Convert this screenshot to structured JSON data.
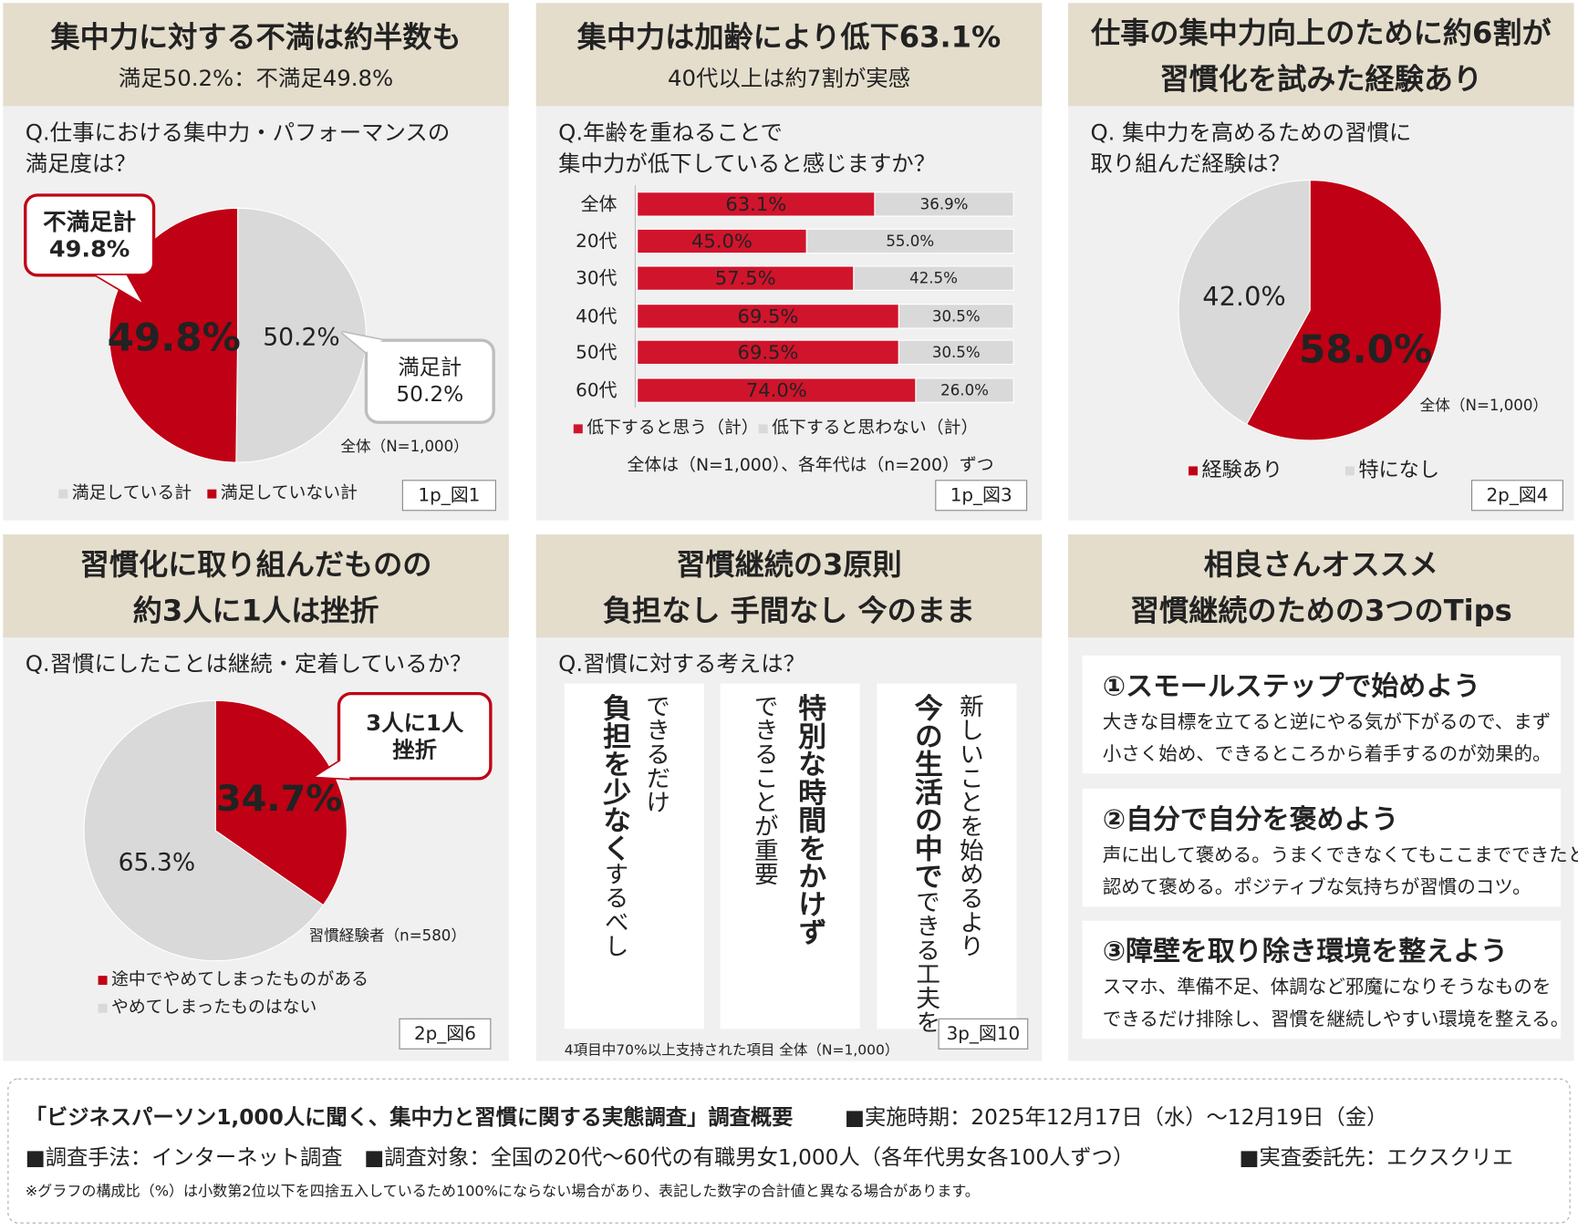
{
  "chart_data": [
    {
      "type": "pie",
      "title": [
        "集中力に対する不満は約半数も"
      ],
      "subtitle": "満足50.2%：不満足49.8%",
      "question": [
        "Q.仕事における集中力・パフォーマンスの",
        "満足度は？"
      ],
      "categories": [
        "満足している計",
        "満足していない計"
      ],
      "values": [
        50.2,
        49.8
      ],
      "value_labels": [
        "50.2%",
        "49.8%"
      ],
      "colors": [
        "#d9d9d9",
        "#c00014"
      ],
      "callouts": [
        {
          "lines": [
            "不満足計",
            "49.8%"
          ],
          "color": "#c00014"
        },
        {
          "lines": [
            "満足計",
            "50.2%"
          ],
          "color": "#bdbdbd"
        }
      ],
      "note": "全体（N=1,000）",
      "figure": "1p_図1"
    },
    {
      "type": "bar",
      "orientation": "horizontal",
      "stacked": true,
      "title": [
        "集中力は加齢により低下63.1%"
      ],
      "subtitle": "40代以上は約7割が実感",
      "question": [
        "Q.年齢を重ねることで",
        "集中力が低下していると感じますか？"
      ],
      "categories": [
        "全体",
        "20代",
        "30代",
        "40代",
        "50代",
        "60代"
      ],
      "series": [
        {
          "name": "低下すると思う（計）",
          "color": "#d0142c",
          "values": [
            63.1,
            45.0,
            57.5,
            69.5,
            69.5,
            74.0
          ],
          "value_labels": [
            "63.1%",
            "45.0%",
            "57.5%",
            "69.5%",
            "69.5%",
            "74.0%"
          ]
        },
        {
          "name": "低下すると思わない（計）",
          "color": "#d9d9d9",
          "values": [
            36.9,
            55.0,
            42.5,
            30.5,
            30.5,
            26.0
          ],
          "value_labels": [
            "36.9%",
            "55.0%",
            "42.5%",
            "30.5%",
            "30.5%",
            "26.0%"
          ]
        }
      ],
      "xlim": [
        0,
        100
      ],
      "note": "全体は（N=1,000）、各年代は（n=200）ずつ",
      "figure": "1p_図3"
    },
    {
      "type": "pie",
      "title": [
        "仕事の集中力向上のために約6割が",
        "習慣化を試みた経験あり"
      ],
      "question": [
        "Q. 集中力を高めるための習慣に",
        "取り組んだ経験は？"
      ],
      "categories": [
        "経験あり",
        "特になし"
      ],
      "values": [
        58.0,
        42.0
      ],
      "value_labels": [
        "58.0%",
        "42.0%"
      ],
      "colors": [
        "#c00014",
        "#d9d9d9"
      ],
      "note": "全体（N=1,000）",
      "figure": "2p_図4"
    },
    {
      "type": "pie",
      "title": [
        "習慣化に取り組んだものの",
        "約3人に1人は挫折"
      ],
      "question": [
        "Q.習慣にしたことは継続・定着しているか？"
      ],
      "categories": [
        "途中でやめてしまったものがある",
        "やめてしまったものはない"
      ],
      "values": [
        34.7,
        65.3
      ],
      "value_labels": [
        "34.7%",
        "65.3%"
      ],
      "colors": [
        "#c00014",
        "#d9d9d9"
      ],
      "callouts": [
        {
          "lines": [
            "3人に1人",
            "挫折"
          ],
          "color": "#c00014"
        }
      ],
      "note": "習慣経験者（n=580）",
      "figure": "2p_図6"
    }
  ],
  "text_panels": [
    {
      "title": [
        "習慣継続の3原則",
        "負担なし 手間なし 今のまま"
      ],
      "question": [
        "Q.習慣に対する考えは？"
      ],
      "cards": [
        {
          "columns": [
            {
              "parts": [
                {
                  "text": "できるだけ",
                  "bold": false
                }
              ]
            },
            {
              "parts": [
                {
                  "text": "負担を少なく",
                  "bold": true
                },
                {
                  "text": "するべし",
                  "bold": false
                }
              ]
            }
          ]
        },
        {
          "columns": [
            {
              "parts": [
                {
                  "text": "特別な時間をかけず",
                  "bold": true
                }
              ]
            },
            {
              "parts": [
                {
                  "text": "できることが重要",
                  "bold": false
                }
              ]
            }
          ]
        },
        {
          "columns": [
            {
              "parts": [
                {
                  "text": "新しいことを始めるより",
                  "bold": false
                }
              ]
            },
            {
              "parts": [
                {
                  "text": "今の生活の中で",
                  "bold": true
                },
                {
                  "text": "できる工夫を",
                  "bold": false
                }
              ]
            }
          ]
        }
      ],
      "note": "4項目中70%以上支持された項目  全体（N=1,000）",
      "figure": "3p_図10"
    },
    {
      "title": [
        "相良さんオススメ",
        "習慣継続のための3つのTips"
      ],
      "tips": [
        {
          "heading": "①スモールステップで始めよう",
          "body": [
            "大きな目標を立てると逆にやる気が下がるので、まず",
            "小さく始め、できるところから着手するのが効果的。"
          ]
        },
        {
          "heading": "②自分で自分を褒めよう",
          "body": [
            "声に出して褒める。うまくできなくてもここまでできたと",
            "認めて褒める。ポジティブな気持ちが習慣のコツ。"
          ]
        },
        {
          "heading": "③障壁を取り除き環境を整えよう",
          "body": [
            "スマホ、準備不足、体調など邪魔になりそうなものを",
            "できるだけ排除し、習慣を継続しやすい環境を整える。"
          ]
        }
      ]
    }
  ],
  "footer": {
    "title": "「ビジネスパーソン1,000人に聞く、集中力と習慣に関する実態調査」調査概要",
    "items": [
      "■実施時期：2025年12月17日（水）～12月19日（金）",
      "■調査手法：インターネット調査",
      "■調査対象：全国の20代～60代の有職男女1,000人（各年代男女各100人ずつ）",
      "■実査委託先：エクスクリエ"
    ],
    "note": "※グラフの構成比（%）は小数第2位以下を四捨五入しているため100%にならない場合があり、表記した数字の合計値と異なる場合があります。"
  }
}
